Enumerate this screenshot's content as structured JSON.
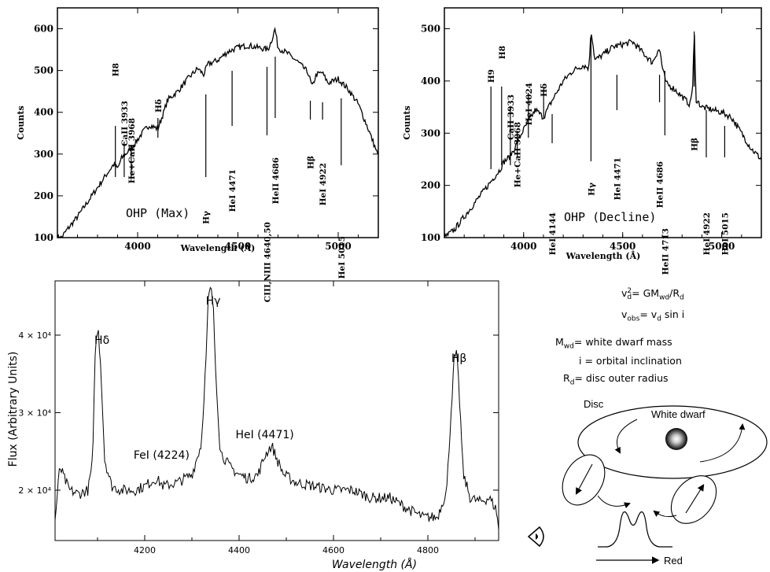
{
  "chart_data": [
    {
      "type": "line",
      "panel": "top-left",
      "annotation": "OHP (Max)",
      "xlabel": "Wavelength (Å)",
      "ylabel": "Counts",
      "xlim": [
        3600,
        5200
      ],
      "ylim": [
        100,
        650
      ],
      "xticks": [
        4000,
        4500,
        5000
      ],
      "yticks": [
        100,
        200,
        300,
        400,
        500,
        600
      ],
      "x": [
        3620,
        3650,
        3700,
        3750,
        3800,
        3850,
        3880,
        3900,
        3920,
        3950,
        3980,
        4000,
        4030,
        4060,
        4100,
        4130,
        4150,
        4200,
        4250,
        4300,
        4330,
        4350,
        4400,
        4450,
        4500,
        4550,
        4600,
        4650,
        4670,
        4685,
        4700,
        4750,
        4800,
        4850,
        4870,
        4890,
        4920,
        4950,
        5000,
        5050,
        5100,
        5150,
        5200
      ],
      "values": [
        100,
        120,
        150,
        185,
        220,
        255,
        275,
        265,
        290,
        305,
        320,
        335,
        355,
        370,
        360,
        400,
        430,
        450,
        480,
        505,
        490,
        515,
        525,
        545,
        555,
        560,
        555,
        550,
        575,
        600,
        555,
        540,
        520,
        495,
        460,
        490,
        495,
        470,
        480,
        455,
        420,
        360,
        295
      ],
      "line_labels": [
        {
          "text": "H8",
          "x": 3889
        },
        {
          "text": "CaII 3933",
          "x": 3933
        },
        {
          "text": "He+CaII 3968",
          "x": 3968
        },
        {
          "text": "Hδ",
          "x": 4101
        },
        {
          "text": "Hγ",
          "x": 4340
        },
        {
          "text": "HeI 4471",
          "x": 4471
        },
        {
          "text": "CIII,NIII 4640,50",
          "x": 4645
        },
        {
          "text": "HeII 4686",
          "x": 4686
        },
        {
          "text": "Hβ",
          "x": 4861
        },
        {
          "text": "HeI 4922",
          "x": 4922
        },
        {
          "text": "HeI 5015",
          "x": 5015
        }
      ]
    },
    {
      "type": "line",
      "panel": "top-right",
      "annotation": "OHP (Decline)",
      "xlabel": "Wavelength (Å)",
      "ylabel": "Counts",
      "xlim": [
        3600,
        5200
      ],
      "ylim": [
        100,
        540
      ],
      "xticks": [
        4000,
        4500,
        5000
      ],
      "yticks": [
        100,
        200,
        300,
        400,
        500
      ],
      "x": [
        3600,
        3650,
        3700,
        3750,
        3800,
        3850,
        3880,
        3900,
        3930,
        3960,
        3990,
        4020,
        4060,
        4100,
        4140,
        4200,
        4250,
        4300,
        4330,
        4340,
        4360,
        4400,
        4450,
        4500,
        4550,
        4600,
        4650,
        4680,
        4690,
        4700,
        4720,
        4760,
        4800,
        4840,
        4855,
        4861,
        4870,
        4900,
        4950,
        5000,
        5050,
        5100,
        5150,
        5200
      ],
      "values": [
        100,
        115,
        140,
        165,
        190,
        215,
        230,
        245,
        255,
        275,
        300,
        320,
        345,
        330,
        360,
        400,
        420,
        430,
        425,
        500,
        440,
        450,
        465,
        470,
        475,
        455,
        435,
        460,
        455,
        425,
        395,
        385,
        370,
        355,
        395,
        505,
        365,
        350,
        345,
        340,
        330,
        300,
        270,
        250
      ],
      "line_labels": [
        {
          "text": "H9",
          "x": 3835
        },
        {
          "text": "H8",
          "x": 3889
        },
        {
          "text": "CaII 3933",
          "x": 3933
        },
        {
          "text": "He+CaII 3968",
          "x": 3968
        },
        {
          "text": "HeI 4024",
          "x": 4024
        },
        {
          "text": "Hδ",
          "x": 4101
        },
        {
          "text": "HeI 4144",
          "x": 4144
        },
        {
          "text": "Hγ",
          "x": 4340
        },
        {
          "text": "HeI 4471",
          "x": 4471
        },
        {
          "text": "HeII 4686",
          "x": 4686
        },
        {
          "text": "HeII 4713",
          "x": 4713
        },
        {
          "text": "Hβ",
          "x": 4861
        },
        {
          "text": "HeI 4922",
          "x": 4922
        },
        {
          "text": "HeI 5015",
          "x": 5015
        }
      ]
    },
    {
      "type": "line",
      "panel": "bottom-left",
      "xlabel": "Wavelength (Å)",
      "ylabel": "Flux (Arbitrary Units)",
      "xlim": [
        4010,
        4950
      ],
      "ylim": [
        13500,
        47000
      ],
      "xticks": [
        4200,
        4400,
        4600,
        4800
      ],
      "yticks": [
        20000,
        30000,
        40000
      ],
      "ytick_labels": [
        "2 × 10⁴",
        "3 × 10⁴",
        "4 × 10⁴"
      ],
      "x": [
        4010,
        4020,
        4040,
        4060,
        4080,
        4090,
        4095,
        4101,
        4107,
        4115,
        4130,
        4150,
        4180,
        4200,
        4224,
        4240,
        4270,
        4300,
        4320,
        4330,
        4335,
        4340,
        4345,
        4350,
        4360,
        4380,
        4400,
        4420,
        4440,
        4455,
        4465,
        4471,
        4480,
        4495,
        4520,
        4560,
        4600,
        4640,
        4680,
        4720,
        4760,
        4790,
        4820,
        4840,
        4850,
        4856,
        4861,
        4866,
        4875,
        4890,
        4910,
        4930,
        4945,
        4950
      ],
      "values": [
        16000,
        23000,
        20000,
        19500,
        20000,
        24000,
        38000,
        41000,
        36000,
        24000,
        20500,
        20000,
        20000,
        20500,
        21500,
        20500,
        21000,
        22000,
        26000,
        37000,
        45000,
        46000,
        44000,
        36000,
        25000,
        23000,
        22000,
        21500,
        22000,
        24500,
        25500,
        25500,
        24000,
        22000,
        21000,
        20500,
        20000,
        20000,
        19000,
        19000,
        17500,
        16500,
        16500,
        20000,
        31000,
        37000,
        37500,
        33000,
        22000,
        19000,
        18500,
        19000,
        17500,
        15000
      ],
      "line_labels": [
        {
          "text": "Hδ",
          "x": 4101
        },
        {
          "text": "FeI (4224)",
          "x": 4224
        },
        {
          "text": "Hγ",
          "x": 4340
        },
        {
          "text": "HeI (4471)",
          "x": 4471
        },
        {
          "text": "Hβ",
          "x": 4861
        }
      ]
    }
  ],
  "diagram": {
    "equations": [
      {
        "lhs": "v",
        "lhs_sub": "d",
        "lhs_sup": "2",
        "rhs_parts": [
          "= GM",
          "wd",
          "/R",
          "d"
        ]
      },
      {
        "lhs": "v",
        "lhs_sub": "obs",
        "rhs_parts": [
          "= v",
          "d",
          " sin i"
        ]
      }
    ],
    "definitions": [
      {
        "sym": "M",
        "sub": "wd",
        "text": "= white dwarf mass"
      },
      {
        "sym": "i",
        "sub": "",
        "text": "= orbital inclination"
      },
      {
        "sym": "R",
        "sub": "d",
        "text": "= disc outer radius"
      }
    ],
    "disc_label": "Disc",
    "white_dwarf_label": "White dwarf",
    "red_label": "Red"
  }
}
